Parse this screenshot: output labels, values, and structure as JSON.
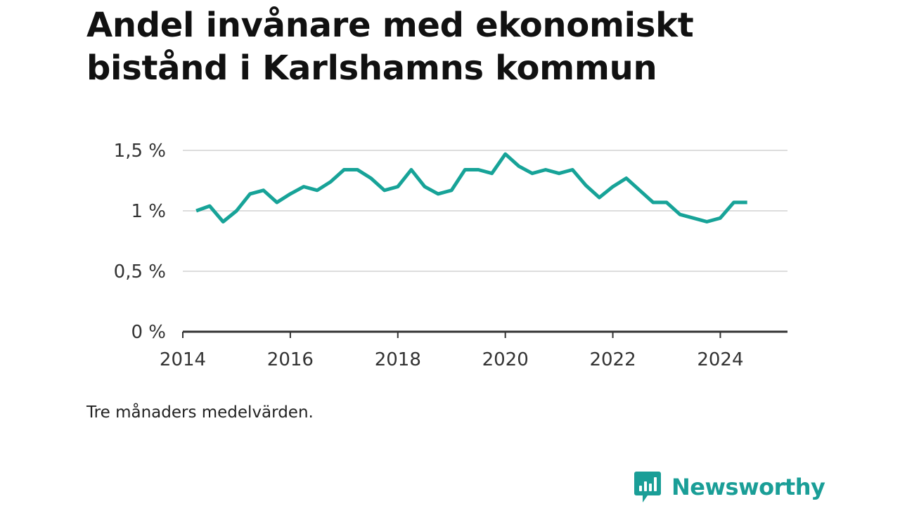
{
  "title": "Andel invånare med ekonomiskt bistånd i Karlshamns kommun",
  "note": "Tre månaders medelvärden.",
  "brand": {
    "name": "Newsworthy",
    "logo_icon": "bar-chart-speech-bubble-icon",
    "color": "#1a9e97"
  },
  "colors": {
    "line": "#17a398",
    "grid": "#dddddd",
    "axis": "#333333"
  },
  "chart_data": {
    "type": "line",
    "title": "Andel invånare med ekonomiskt bistånd i Karlshamns kommun",
    "xlabel": "",
    "ylabel": "",
    "x_ticks": [
      "2014",
      "2016",
      "2018",
      "2020",
      "2022",
      "2024"
    ],
    "y_ticks": [
      "0 %",
      "0,5 %",
      "1 %",
      "1,5 %"
    ],
    "ylim": [
      0,
      1.5
    ],
    "xlim": [
      "2014-01",
      "2025-04"
    ],
    "grid": true,
    "legend": "none",
    "series": [
      {
        "x": [
          "2014-04",
          "2014-07",
          "2014-10",
          "2015-01",
          "2015-04",
          "2015-07",
          "2015-10",
          "2016-01",
          "2016-04",
          "2016-07",
          "2016-10",
          "2017-01",
          "2017-04",
          "2017-07",
          "2017-10",
          "2018-01",
          "2018-04",
          "2018-07",
          "2018-10",
          "2019-01",
          "2019-04",
          "2019-07",
          "2019-10",
          "2020-01",
          "2020-04",
          "2020-07",
          "2020-10",
          "2021-01",
          "2021-04",
          "2021-07",
          "2021-10",
          "2022-01",
          "2022-04",
          "2022-07",
          "2022-10",
          "2023-01",
          "2023-04",
          "2023-07",
          "2023-10",
          "2024-01",
          "2024-04",
          "2024-07"
        ],
        "y": [
          1.0,
          1.04,
          0.91,
          1.0,
          1.14,
          1.17,
          1.07,
          1.14,
          1.2,
          1.17,
          1.24,
          1.34,
          1.34,
          1.27,
          1.17,
          1.2,
          1.34,
          1.2,
          1.14,
          1.17,
          1.34,
          1.34,
          1.31,
          1.47,
          1.37,
          1.31,
          1.34,
          1.31,
          1.34,
          1.21,
          1.11,
          1.2,
          1.27,
          1.17,
          1.07,
          1.07,
          0.97,
          0.94,
          0.91,
          0.94,
          1.07,
          1.07
        ]
      }
    ]
  }
}
